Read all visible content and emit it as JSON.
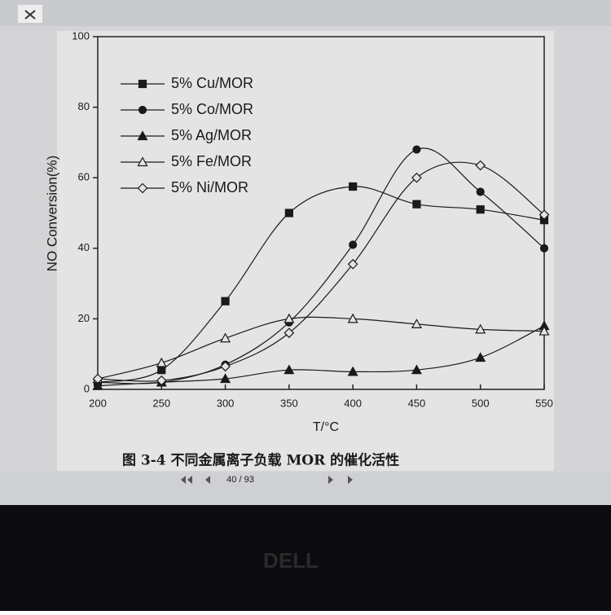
{
  "chart_data": {
    "type": "line",
    "x_label": "T/°C",
    "y_label": "NO Conversion(%)",
    "x": [
      200,
      250,
      300,
      350,
      400,
      450,
      500,
      550
    ],
    "xlim": [
      200,
      550
    ],
    "xticks": [
      200,
      250,
      300,
      350,
      400,
      450,
      500,
      550
    ],
    "ylim": [
      0,
      100
    ],
    "yticks": [
      0,
      20,
      40,
      60,
      80,
      100
    ],
    "legend": "upper left",
    "series": [
      {
        "name": "5% Cu/MOR",
        "color": "#1a1a1a",
        "marker": "square",
        "filled": true,
        "values": [
          2,
          5.5,
          25,
          50,
          57.5,
          52.5,
          51,
          48
        ]
      },
      {
        "name": "5% Co/MOR",
        "color": "#1a1a1a",
        "marker": "circle",
        "filled": true,
        "values": [
          2,
          2,
          7,
          19,
          41,
          68,
          56,
          40
        ]
      },
      {
        "name": "5% Ag/MOR",
        "color": "#1a1a1a",
        "marker": "triangle",
        "filled": true,
        "values": [
          1,
          2,
          3,
          5.5,
          5,
          5.5,
          9,
          18
        ]
      },
      {
        "name": "5% Fe/MOR",
        "color": "#1a1a1a",
        "marker": "triangle",
        "filled": false,
        "values": [
          3,
          7.5,
          14.5,
          20,
          20,
          18.5,
          17,
          16.5
        ]
      },
      {
        "name": "5% Ni/MOR",
        "color": "#1a1a1a",
        "marker": "diamond",
        "filled": false,
        "values": [
          3,
          2.5,
          6.5,
          16,
          35.5,
          60,
          63.5,
          49.5
        ]
      }
    ]
  },
  "caption": "图 3-4 不同金属离子负载 MOR 的催化活性",
  "page_indicator": "40 / 93",
  "brand": "DELL"
}
